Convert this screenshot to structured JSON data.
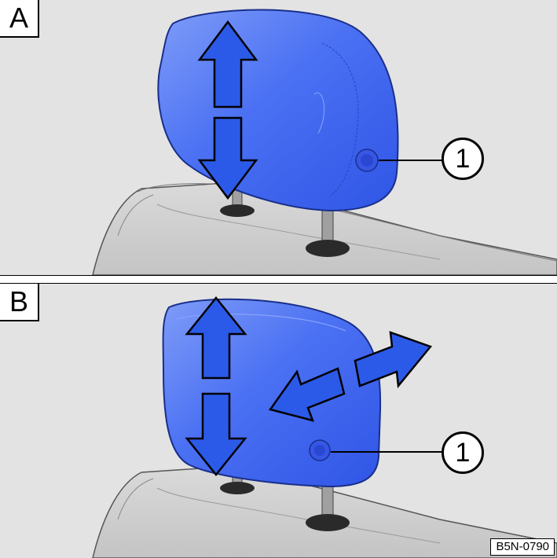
{
  "panels": [
    {
      "label": "A",
      "callout": "1"
    },
    {
      "label": "B",
      "callout": "1"
    }
  ],
  "image_code": "B5N-0790",
  "colors": {
    "headrest": "#3a63f2",
    "headrest_highlight": "#6f8ff7",
    "arrow": "#2c5ae8",
    "background": "#e3e3e3",
    "seat": "#cfcfcf",
    "post": "#9a9a9a"
  },
  "icons": [
    "arrow-up-icon",
    "arrow-down-icon",
    "arrow-forward-icon",
    "arrow-back-icon"
  ]
}
